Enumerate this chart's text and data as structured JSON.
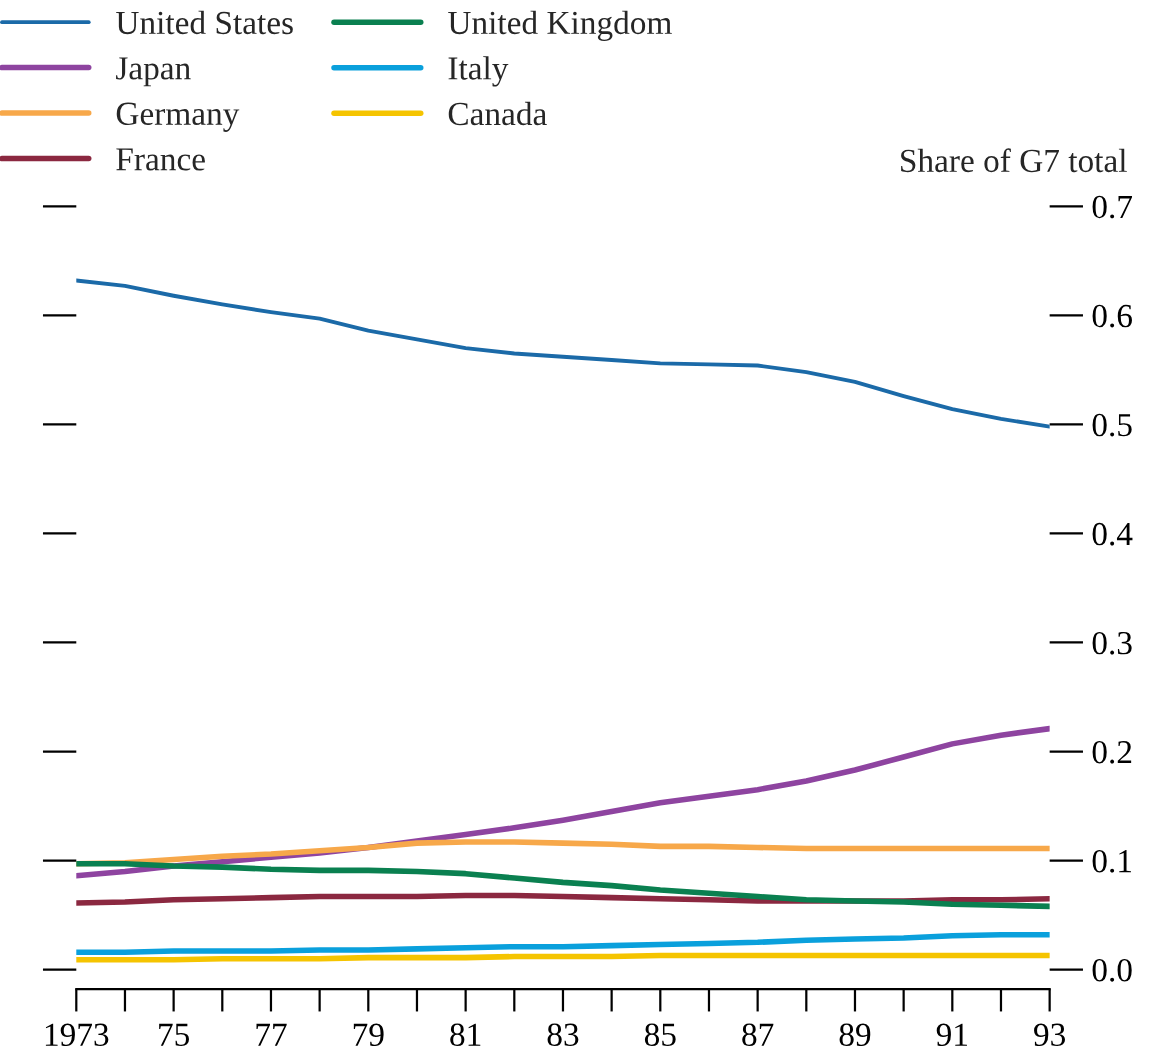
{
  "chart_data": {
    "type": "line",
    "ylabel": "Share of G7 total",
    "x": [
      1973,
      1974,
      1975,
      1976,
      1977,
      1978,
      1979,
      1980,
      1981,
      1982,
      1983,
      1984,
      1985,
      1986,
      1987,
      1988,
      1989,
      1990,
      1991,
      1992,
      1993
    ],
    "series": [
      {
        "name": "United States",
        "color": "#1b6aa8",
        "values": [
          0.632,
          0.627,
          0.618,
          0.61,
          0.603,
          0.597,
          0.586,
          0.578,
          0.57,
          0.565,
          0.562,
          0.559,
          0.556,
          0.555,
          0.554,
          0.548,
          0.539,
          0.526,
          0.514,
          0.505,
          0.498
        ]
      },
      {
        "name": "Japan",
        "color": "#8e44a0",
        "values": [
          0.086,
          0.09,
          0.095,
          0.099,
          0.103,
          0.107,
          0.112,
          0.118,
          0.124,
          0.13,
          0.137,
          0.145,
          0.153,
          0.159,
          0.165,
          0.173,
          0.183,
          0.195,
          0.207,
          0.215,
          0.221
        ]
      },
      {
        "name": "Germany",
        "color": "#f7a84a",
        "values": [
          0.097,
          0.098,
          0.101,
          0.104,
          0.106,
          0.109,
          0.112,
          0.116,
          0.117,
          0.117,
          0.116,
          0.115,
          0.113,
          0.113,
          0.112,
          0.111,
          0.111,
          0.111,
          0.111,
          0.111,
          0.111
        ]
      },
      {
        "name": "France",
        "color": "#8b2840",
        "values": [
          0.061,
          0.062,
          0.064,
          0.065,
          0.066,
          0.067,
          0.067,
          0.067,
          0.068,
          0.068,
          0.067,
          0.066,
          0.065,
          0.064,
          0.063,
          0.063,
          0.063,
          0.063,
          0.064,
          0.064,
          0.065
        ]
      },
      {
        "name": "United Kingdom",
        "color": "#0a8050",
        "values": [
          0.097,
          0.097,
          0.095,
          0.094,
          0.092,
          0.091,
          0.091,
          0.09,
          0.088,
          0.084,
          0.08,
          0.077,
          0.073,
          0.07,
          0.067,
          0.064,
          0.063,
          0.062,
          0.06,
          0.059,
          0.058
        ]
      },
      {
        "name": "Italy",
        "color": "#0aa0dc",
        "values": [
          0.016,
          0.016,
          0.017,
          0.017,
          0.017,
          0.018,
          0.018,
          0.019,
          0.02,
          0.021,
          0.021,
          0.022,
          0.023,
          0.024,
          0.025,
          0.027,
          0.028,
          0.029,
          0.031,
          0.032,
          0.032
        ]
      },
      {
        "name": "Canada",
        "color": "#f5c400",
        "values": [
          0.009,
          0.009,
          0.009,
          0.01,
          0.01,
          0.01,
          0.011,
          0.011,
          0.011,
          0.012,
          0.012,
          0.012,
          0.013,
          0.013,
          0.013,
          0.013,
          0.013,
          0.013,
          0.013,
          0.013,
          0.013
        ]
      }
    ],
    "xlim": [
      1973,
      1993
    ],
    "xticks": [
      {
        "value": 1973,
        "label": "1973"
      },
      {
        "value": 1974,
        "label": null
      },
      {
        "value": 1975,
        "label": "75"
      },
      {
        "value": 1976,
        "label": null
      },
      {
        "value": 1977,
        "label": "77"
      },
      {
        "value": 1978,
        "label": null
      },
      {
        "value": 1979,
        "label": "79"
      },
      {
        "value": 1980,
        "label": null
      },
      {
        "value": 1981,
        "label": "81"
      },
      {
        "value": 1982,
        "label": null
      },
      {
        "value": 1983,
        "label": "83"
      },
      {
        "value": 1984,
        "label": null
      },
      {
        "value": 1985,
        "label": "85"
      },
      {
        "value": 1986,
        "label": null
      },
      {
        "value": 1987,
        "label": "87"
      },
      {
        "value": 1988,
        "label": null
      },
      {
        "value": 1989,
        "label": "89"
      },
      {
        "value": 1990,
        "label": null
      },
      {
        "value": 1991,
        "label": "91"
      },
      {
        "value": 1992,
        "label": null
      },
      {
        "value": 1993,
        "label": "93"
      }
    ],
    "ylim": [
      -0.018,
      0.7
    ],
    "yticks": [
      {
        "value": 0,
        "label": "0.0"
      },
      {
        "value": 0.1,
        "label": "0.1"
      },
      {
        "value": 0.2,
        "label": "0.2"
      },
      {
        "value": 0.3,
        "label": "0.3"
      },
      {
        "value": 0.4,
        "label": "0.4"
      },
      {
        "value": 0.5,
        "label": "0.5"
      },
      {
        "value": 0.6,
        "label": "0.6"
      },
      {
        "value": 0.7,
        "label": "0.7"
      }
    ],
    "grid": false,
    "legend": "top left",
    "marker": "none",
    "line_style": "solid"
  }
}
